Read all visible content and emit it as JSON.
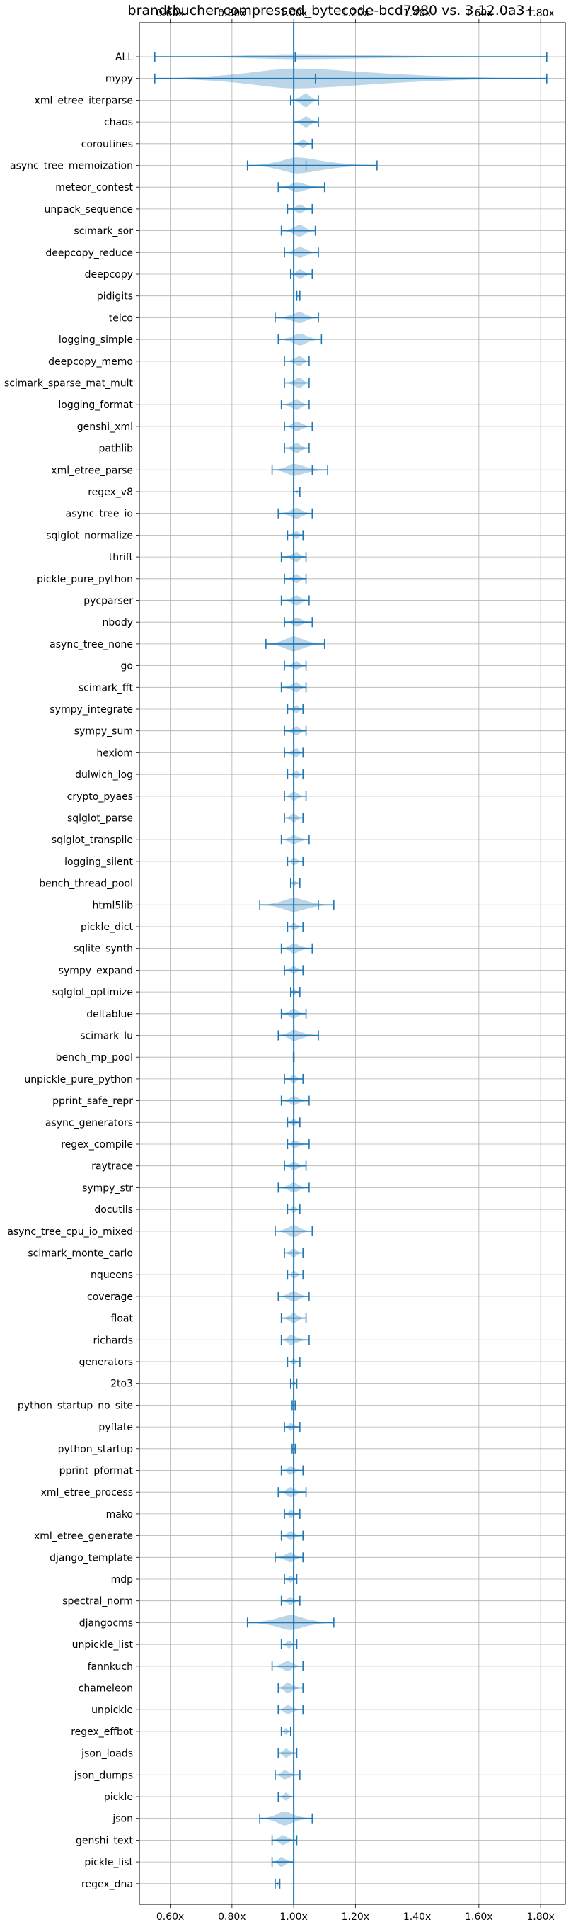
{
  "chart_data": {
    "type": "violin",
    "title": "brandtbucher-compressed_bytecode-bcd7980 vs. 3.12.0a3+",
    "xlabel": "",
    "ylabel": "",
    "xlim": [
      0.5,
      1.88
    ],
    "x_ticks": [
      0.6,
      0.8,
      1.0,
      1.2,
      1.4,
      1.6,
      1.8
    ],
    "x_tick_labels": [
      "0.60x",
      "0.80x",
      "1.00x",
      "1.20x",
      "1.40x",
      "1.60x",
      "1.80x"
    ],
    "x_ticks_top_and_bottom": true,
    "reference_line": 1.0,
    "grid": true,
    "colors": {
      "violin": "#1f77b4",
      "violin_alpha": 0.3,
      "line": "#1f77b4"
    },
    "benchmarks": [
      {
        "name": "ALL",
        "min": 0.55,
        "max": 1.82,
        "median": 1.0,
        "width": 0.25,
        "mean": 1.005
      },
      {
        "name": "mypy",
        "min": 0.55,
        "max": 1.82,
        "median": 1.0,
        "width": 1.0,
        "mean": 1.07
      },
      {
        "name": "xml_etree_iterparse",
        "min": 0.99,
        "max": 1.08,
        "median": 1.04,
        "width": 0.7
      },
      {
        "name": "chaos",
        "min": 1.0,
        "max": 1.08,
        "median": 1.04,
        "width": 0.55
      },
      {
        "name": "coroutines",
        "min": 1.0,
        "max": 1.06,
        "median": 1.03,
        "width": 0.45
      },
      {
        "name": "async_tree_memoization",
        "min": 0.85,
        "max": 1.27,
        "median": 1.01,
        "width": 0.8,
        "mean": 1.04
      },
      {
        "name": "meteor_contest",
        "min": 0.95,
        "max": 1.1,
        "median": 1.01,
        "width": 0.5
      },
      {
        "name": "unpack_sequence",
        "min": 0.98,
        "max": 1.06,
        "median": 1.02,
        "width": 0.45
      },
      {
        "name": "scimark_sor",
        "min": 0.96,
        "max": 1.07,
        "median": 1.02,
        "width": 0.6
      },
      {
        "name": "deepcopy_reduce",
        "min": 0.97,
        "max": 1.08,
        "median": 1.02,
        "width": 0.55
      },
      {
        "name": "deepcopy",
        "min": 0.99,
        "max": 1.06,
        "median": 1.02,
        "width": 0.5
      },
      {
        "name": "pidigits",
        "min": 1.01,
        "max": 1.02,
        "median": 1.015,
        "width": 0.1
      },
      {
        "name": "telco",
        "min": 0.94,
        "max": 1.08,
        "median": 1.02,
        "width": 0.55
      },
      {
        "name": "logging_simple",
        "min": 0.95,
        "max": 1.09,
        "median": 1.02,
        "width": 0.6
      },
      {
        "name": "deepcopy_memo",
        "min": 0.97,
        "max": 1.05,
        "median": 1.02,
        "width": 0.5
      },
      {
        "name": "scimark_sparse_mat_mult",
        "min": 0.97,
        "max": 1.05,
        "median": 1.02,
        "width": 0.55
      },
      {
        "name": "logging_format",
        "min": 0.96,
        "max": 1.05,
        "median": 1.01,
        "width": 0.55
      },
      {
        "name": "genshi_xml",
        "min": 0.97,
        "max": 1.06,
        "median": 1.01,
        "width": 0.5
      },
      {
        "name": "pathlib",
        "min": 0.97,
        "max": 1.05,
        "median": 1.01,
        "width": 0.5
      },
      {
        "name": "xml_etree_parse",
        "min": 0.93,
        "max": 1.11,
        "median": 1.0,
        "width": 0.6,
        "mean": 1.06
      },
      {
        "name": "regex_v8",
        "min": 1.0,
        "max": 1.02,
        "median": 1.01,
        "width": 0.2
      },
      {
        "name": "async_tree_io",
        "min": 0.95,
        "max": 1.06,
        "median": 1.01,
        "width": 0.55
      },
      {
        "name": "sqlglot_normalize",
        "min": 0.98,
        "max": 1.03,
        "median": 1.01,
        "width": 0.4
      },
      {
        "name": "thrift",
        "min": 0.96,
        "max": 1.04,
        "median": 1.01,
        "width": 0.5
      },
      {
        "name": "pickle_pure_python",
        "min": 0.97,
        "max": 1.04,
        "median": 1.01,
        "width": 0.45
      },
      {
        "name": "pycparser",
        "min": 0.96,
        "max": 1.05,
        "median": 1.01,
        "width": 0.5
      },
      {
        "name": "nbody",
        "min": 0.97,
        "max": 1.06,
        "median": 1.01,
        "width": 0.45
      },
      {
        "name": "async_tree_none",
        "min": 0.91,
        "max": 1.1,
        "median": 1.0,
        "width": 0.75
      },
      {
        "name": "go",
        "min": 0.97,
        "max": 1.04,
        "median": 1.01,
        "width": 0.45
      },
      {
        "name": "scimark_fft",
        "min": 0.96,
        "max": 1.04,
        "median": 1.01,
        "width": 0.5
      },
      {
        "name": "sympy_integrate",
        "min": 0.98,
        "max": 1.03,
        "median": 1.01,
        "width": 0.4
      },
      {
        "name": "sympy_sum",
        "min": 0.97,
        "max": 1.04,
        "median": 1.01,
        "width": 0.45
      },
      {
        "name": "hexiom",
        "min": 0.97,
        "max": 1.03,
        "median": 1.01,
        "width": 0.45
      },
      {
        "name": "dulwich_log",
        "min": 0.98,
        "max": 1.03,
        "median": 1.01,
        "width": 0.4
      },
      {
        "name": "crypto_pyaes",
        "min": 0.97,
        "max": 1.04,
        "median": 1.0,
        "width": 0.45
      },
      {
        "name": "sqlglot_parse",
        "min": 0.97,
        "max": 1.03,
        "median": 1.0,
        "width": 0.45
      },
      {
        "name": "sqlglot_transpile",
        "min": 0.96,
        "max": 1.05,
        "median": 1.0,
        "width": 0.45
      },
      {
        "name": "logging_silent",
        "min": 0.98,
        "max": 1.03,
        "median": 1.0,
        "width": 0.4
      },
      {
        "name": "bench_thread_pool",
        "min": 0.99,
        "max": 1.02,
        "median": 1.0,
        "width": 0.3
      },
      {
        "name": "html5lib",
        "min": 0.89,
        "max": 1.13,
        "median": 1.0,
        "width": 0.7,
        "mean": 1.08
      },
      {
        "name": "pickle_dict",
        "min": 0.98,
        "max": 1.03,
        "median": 1.0,
        "width": 0.4
      },
      {
        "name": "sqlite_synth",
        "min": 0.96,
        "max": 1.06,
        "median": 1.0,
        "width": 0.5
      },
      {
        "name": "sympy_expand",
        "min": 0.97,
        "max": 1.03,
        "median": 1.0,
        "width": 0.4
      },
      {
        "name": "sqlglot_optimize",
        "min": 0.99,
        "max": 1.02,
        "median": 1.0,
        "width": 0.35
      },
      {
        "name": "deltablue",
        "min": 0.96,
        "max": 1.04,
        "median": 1.0,
        "width": 0.5
      },
      {
        "name": "scimark_lu",
        "min": 0.95,
        "max": 1.08,
        "median": 1.0,
        "width": 0.55
      },
      {
        "name": "bench_mp_pool",
        "min": 0.999,
        "max": 1.001,
        "median": 1.0,
        "width": 0.05
      },
      {
        "name": "unpickle_pure_python",
        "min": 0.97,
        "max": 1.03,
        "median": 1.0,
        "width": 0.4
      },
      {
        "name": "pprint_safe_repr",
        "min": 0.96,
        "max": 1.05,
        "median": 1.0,
        "width": 0.45
      },
      {
        "name": "async_generators",
        "min": 0.98,
        "max": 1.02,
        "median": 1.0,
        "width": 0.4
      },
      {
        "name": "regex_compile",
        "min": 0.98,
        "max": 1.05,
        "median": 1.0,
        "width": 0.4
      },
      {
        "name": "raytrace",
        "min": 0.97,
        "max": 1.04,
        "median": 1.0,
        "width": 0.45
      },
      {
        "name": "sympy_str",
        "min": 0.95,
        "max": 1.05,
        "median": 1.0,
        "width": 0.5
      },
      {
        "name": "docutils",
        "min": 0.98,
        "max": 1.02,
        "median": 1.0,
        "width": 0.4
      },
      {
        "name": "async_tree_cpu_io_mixed",
        "min": 0.94,
        "max": 1.06,
        "median": 1.0,
        "width": 0.6
      },
      {
        "name": "scimark_monte_carlo",
        "min": 0.97,
        "max": 1.03,
        "median": 1.0,
        "width": 0.45
      },
      {
        "name": "nqueens",
        "min": 0.98,
        "max": 1.03,
        "median": 1.0,
        "width": 0.4
      },
      {
        "name": "coverage",
        "min": 0.95,
        "max": 1.05,
        "median": 1.0,
        "width": 0.55
      },
      {
        "name": "float",
        "min": 0.96,
        "max": 1.04,
        "median": 1.0,
        "width": 0.5
      },
      {
        "name": "richards",
        "min": 0.96,
        "max": 1.05,
        "median": 0.99,
        "width": 0.5
      },
      {
        "name": "generators",
        "min": 0.98,
        "max": 1.02,
        "median": 1.0,
        "width": 0.35
      },
      {
        "name": "2to3",
        "min": 0.99,
        "max": 1.01,
        "median": 1.0,
        "width": 0.3
      },
      {
        "name": "python_startup_no_site",
        "min": 0.995,
        "max": 1.005,
        "median": 1.0,
        "width": 0.1
      },
      {
        "name": "pyflate",
        "min": 0.97,
        "max": 1.02,
        "median": 0.99,
        "width": 0.4
      },
      {
        "name": "python_startup",
        "min": 0.995,
        "max": 1.005,
        "median": 1.0,
        "width": 0.1
      },
      {
        "name": "pprint_pformat",
        "min": 0.96,
        "max": 1.03,
        "median": 0.99,
        "width": 0.45
      },
      {
        "name": "xml_etree_process",
        "min": 0.95,
        "max": 1.04,
        "median": 0.99,
        "width": 0.5
      },
      {
        "name": "mako",
        "min": 0.97,
        "max": 1.02,
        "median": 0.99,
        "width": 0.4
      },
      {
        "name": "xml_etree_generate",
        "min": 0.96,
        "max": 1.03,
        "median": 0.99,
        "width": 0.45
      },
      {
        "name": "django_template",
        "min": 0.94,
        "max": 1.03,
        "median": 0.99,
        "width": 0.5
      },
      {
        "name": "mdp",
        "min": 0.97,
        "max": 1.01,
        "median": 0.99,
        "width": 0.35
      },
      {
        "name": "spectral_norm",
        "min": 0.96,
        "max": 1.02,
        "median": 0.99,
        "width": 0.4
      },
      {
        "name": "djangocms",
        "min": 0.85,
        "max": 1.13,
        "median": 0.99,
        "width": 0.75
      },
      {
        "name": "unpickle_list",
        "min": 0.96,
        "max": 1.01,
        "median": 0.985,
        "width": 0.4
      },
      {
        "name": "fannkuch",
        "min": 0.93,
        "max": 1.03,
        "median": 0.98,
        "width": 0.5
      },
      {
        "name": "chameleon",
        "min": 0.95,
        "max": 1.03,
        "median": 0.98,
        "width": 0.55
      },
      {
        "name": "unpickle",
        "min": 0.95,
        "max": 1.03,
        "median": 0.98,
        "width": 0.45
      },
      {
        "name": "regex_effbot",
        "min": 0.96,
        "max": 0.99,
        "median": 0.975,
        "width": 0.35
      },
      {
        "name": "json_loads",
        "min": 0.95,
        "max": 1.01,
        "median": 0.975,
        "width": 0.45
      },
      {
        "name": "json_dumps",
        "min": 0.94,
        "max": 1.02,
        "median": 0.97,
        "width": 0.45
      },
      {
        "name": "pickle",
        "min": 0.95,
        "max": 1.0,
        "median": 0.975,
        "width": 0.4
      },
      {
        "name": "json",
        "min": 0.89,
        "max": 1.06,
        "median": 0.97,
        "width": 0.7
      },
      {
        "name": "genshi_text",
        "min": 0.93,
        "max": 1.01,
        "median": 0.965,
        "width": 0.5
      },
      {
        "name": "pickle_list",
        "min": 0.93,
        "max": 1.0,
        "median": 0.96,
        "width": 0.5
      },
      {
        "name": "regex_dna",
        "min": 0.94,
        "max": 0.955,
        "median": 0.948,
        "width": 0.25
      }
    ]
  }
}
